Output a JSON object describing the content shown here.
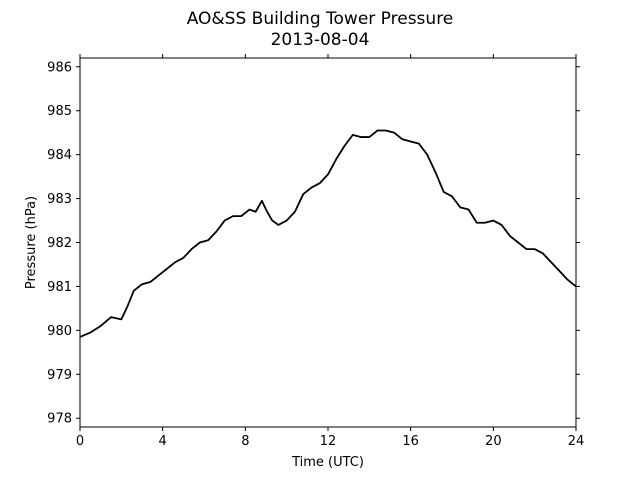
{
  "chart_data": {
    "type": "line",
    "title": "AO&SS Building Tower Pressure",
    "subtitle": "2013-08-04",
    "xlabel": "Time (UTC)",
    "ylabel": "Pressure (hPa)",
    "xlim": [
      0,
      24
    ],
    "ylim": [
      977.8,
      986.2
    ],
    "x_ticks": [
      0,
      4,
      8,
      12,
      16,
      20,
      24
    ],
    "y_ticks": [
      978,
      979,
      980,
      981,
      982,
      983,
      984,
      985,
      986
    ],
    "grid": false,
    "line_color": "#000000",
    "series": [
      {
        "x": [
          0,
          0.5,
          1,
          1.5,
          2,
          2.3,
          2.6,
          3,
          3.4,
          3.8,
          4.2,
          4.6,
          5,
          5.4,
          5.8,
          6.2,
          6.6,
          7,
          7.4,
          7.8,
          8.2,
          8.5,
          8.8,
          9,
          9.3,
          9.6,
          10,
          10.4,
          10.8,
          11.2,
          11.6,
          12,
          12.4,
          12.8,
          13.2,
          13.6,
          14,
          14.4,
          14.8,
          15.2,
          15.6,
          16,
          16.4,
          16.8,
          17.2,
          17.6,
          18,
          18.4,
          18.8,
          19.2,
          19.6,
          20,
          20.4,
          20.8,
          21.2,
          21.6,
          22,
          22.4,
          22.8,
          23.2,
          23.6,
          24
        ],
        "values": [
          979.85,
          979.95,
          980.1,
          980.3,
          980.25,
          980.55,
          980.9,
          981.05,
          981.1,
          981.25,
          981.4,
          981.55,
          981.65,
          981.85,
          982.0,
          982.05,
          982.25,
          982.5,
          982.6,
          982.6,
          982.75,
          982.7,
          982.95,
          982.75,
          982.5,
          982.4,
          982.5,
          982.7,
          983.1,
          983.25,
          983.35,
          983.55,
          983.9,
          984.2,
          984.45,
          984.4,
          984.4,
          984.55,
          984.55,
          984.5,
          984.35,
          984.3,
          984.25,
          984.0,
          983.6,
          983.15,
          983.05,
          982.8,
          982.75,
          982.45,
          982.45,
          982.5,
          982.4,
          982.15,
          982.0,
          981.85,
          981.85,
          981.75,
          981.55,
          981.35,
          981.15,
          981.0
        ]
      }
    ]
  }
}
